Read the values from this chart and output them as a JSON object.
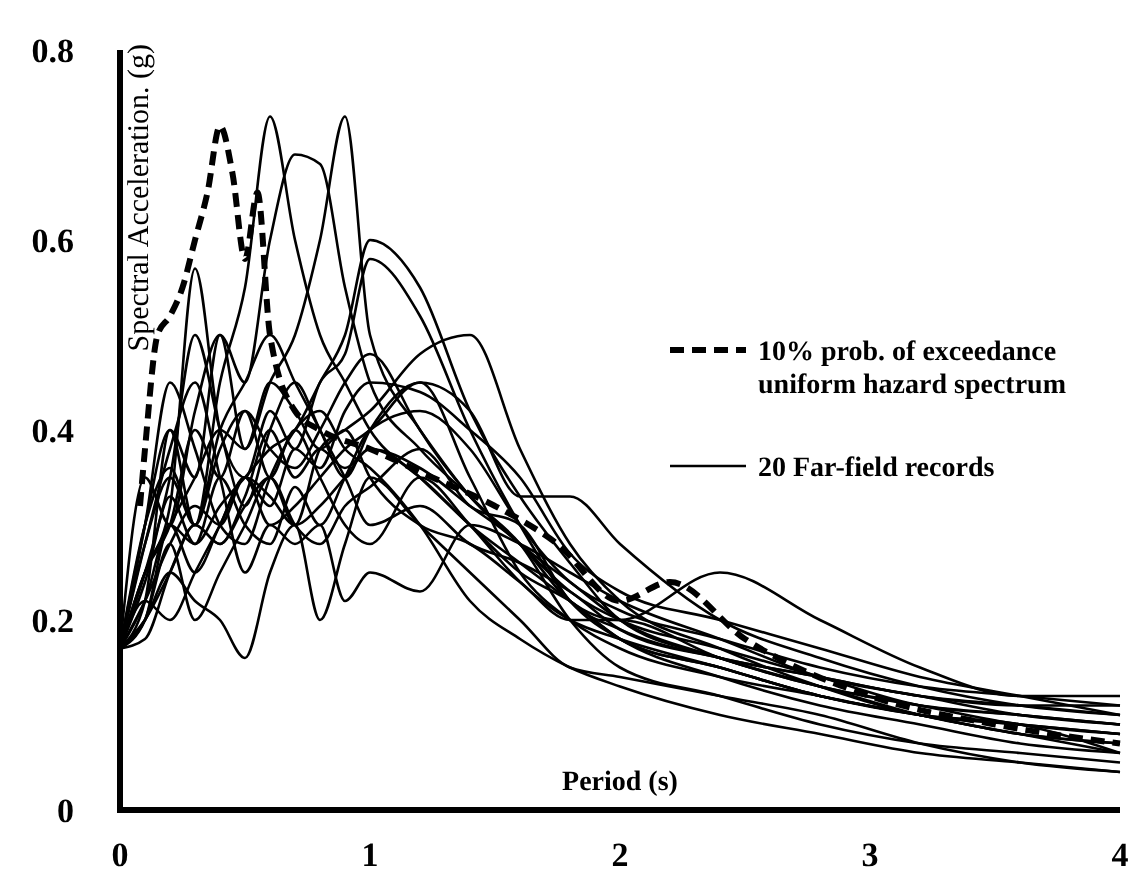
{
  "chart_data": {
    "type": "line",
    "xlabel": "Period (s)",
    "ylabel": "Spectral Acceleration. (g)",
    "xlim": [
      0,
      4
    ],
    "xticks": [
      0,
      1,
      2,
      3,
      4
    ],
    "ylim": [
      0,
      0.8
    ],
    "yticks": [
      0,
      0.2,
      0.4,
      0.6,
      0.8
    ],
    "grid": false,
    "legend": "right",
    "marker": "none",
    "x": [
      0,
      0.1,
      0.2,
      0.3,
      0.4,
      0.5,
      0.6,
      0.7,
      0.8,
      0.9,
      1.0,
      1.2,
      1.4,
      1.6,
      1.8,
      2.0,
      2.4,
      2.8,
      3.2,
      3.6,
      4.0
    ],
    "series": [
      {
        "name": "10% prob. of exceedance uniform hazard spectrum",
        "color": "#000000",
        "line_style": "dashed",
        "x": [
          0.08,
          0.1,
          0.15,
          0.2,
          0.25,
          0.3,
          0.35,
          0.4,
          0.45,
          0.5,
          0.55,
          0.6,
          0.7,
          0.8,
          1.0,
          1.25,
          1.5,
          1.75,
          2.0,
          2.2,
          2.5,
          3.0,
          3.5,
          4.0
        ],
        "values": [
          0.32,
          0.38,
          0.5,
          0.52,
          0.55,
          0.6,
          0.65,
          0.72,
          0.67,
          0.58,
          0.65,
          0.5,
          0.42,
          0.4,
          0.38,
          0.35,
          0.32,
          0.28,
          0.22,
          0.24,
          0.18,
          0.12,
          0.09,
          0.07
        ]
      },
      {
        "name": "20 Far-field records",
        "color": "#000000",
        "values": [
          0.17,
          0.25,
          0.3,
          0.35,
          0.4,
          0.38,
          0.45,
          0.5,
          0.6,
          0.73,
          0.5,
          0.4,
          0.33,
          0.28,
          0.24,
          0.2,
          0.16,
          0.13,
          0.11,
          0.09,
          0.08
        ]
      },
      {
        "color": "#000000",
        "values": [
          0.17,
          0.28,
          0.35,
          0.3,
          0.45,
          0.55,
          0.73,
          0.6,
          0.5,
          0.45,
          0.4,
          0.35,
          0.3,
          0.25,
          0.22,
          0.18,
          0.15,
          0.12,
          0.1,
          0.08,
          0.07
        ]
      },
      {
        "color": "#000000",
        "values": [
          0.17,
          0.3,
          0.4,
          0.35,
          0.5,
          0.45,
          0.6,
          0.69,
          0.68,
          0.55,
          0.45,
          0.38,
          0.33,
          0.28,
          0.23,
          0.2,
          0.17,
          0.14,
          0.11,
          0.1,
          0.09
        ]
      },
      {
        "color": "#000000",
        "values": [
          0.17,
          0.22,
          0.3,
          0.28,
          0.32,
          0.35,
          0.38,
          0.4,
          0.45,
          0.5,
          0.6,
          0.55,
          0.42,
          0.33,
          0.26,
          0.2,
          0.16,
          0.13,
          0.1,
          0.08,
          0.06
        ]
      },
      {
        "color": "#000000",
        "values": [
          0.17,
          0.25,
          0.32,
          0.57,
          0.4,
          0.35,
          0.42,
          0.38,
          0.45,
          0.48,
          0.58,
          0.52,
          0.4,
          0.3,
          0.22,
          0.18,
          0.15,
          0.12,
          0.1,
          0.08,
          0.07
        ]
      },
      {
        "color": "#000000",
        "values": [
          0.17,
          0.2,
          0.25,
          0.3,
          0.28,
          0.32,
          0.35,
          0.3,
          0.38,
          0.4,
          0.42,
          0.48,
          0.5,
          0.38,
          0.28,
          0.22,
          0.17,
          0.13,
          0.1,
          0.09,
          0.08
        ]
      },
      {
        "color": "#000000",
        "values": [
          0.17,
          0.2,
          0.3,
          0.25,
          0.3,
          0.35,
          0.3,
          0.32,
          0.35,
          0.38,
          0.4,
          0.45,
          0.42,
          0.33,
          0.33,
          0.28,
          0.2,
          0.16,
          0.13,
          0.11,
          0.1
        ]
      },
      {
        "color": "#000000",
        "values": [
          0.17,
          0.22,
          0.28,
          0.32,
          0.3,
          0.35,
          0.33,
          0.3,
          0.32,
          0.35,
          0.38,
          0.36,
          0.32,
          0.28,
          0.22,
          0.2,
          0.25,
          0.2,
          0.15,
          0.12,
          0.12
        ]
      },
      {
        "color": "#000000",
        "values": [
          0.17,
          0.2,
          0.25,
          0.22,
          0.2,
          0.16,
          0.25,
          0.3,
          0.2,
          0.28,
          0.35,
          0.3,
          0.25,
          0.2,
          0.15,
          0.14,
          0.12,
          0.1,
          0.07,
          0.05,
          0.04
        ]
      },
      {
        "color": "#000000",
        "values": [
          0.17,
          0.3,
          0.45,
          0.38,
          0.3,
          0.28,
          0.35,
          0.4,
          0.42,
          0.38,
          0.36,
          0.3,
          0.22,
          0.18,
          0.15,
          0.13,
          0.1,
          0.08,
          0.06,
          0.05,
          0.04
        ]
      },
      {
        "color": "#000000",
        "values": [
          0.17,
          0.25,
          0.35,
          0.5,
          0.4,
          0.32,
          0.4,
          0.45,
          0.4,
          0.35,
          0.4,
          0.45,
          0.35,
          0.25,
          0.2,
          0.17,
          0.14,
          0.12,
          0.1,
          0.09,
          0.08
        ]
      },
      {
        "color": "#000000",
        "values": [
          0.17,
          0.22,
          0.4,
          0.3,
          0.38,
          0.42,
          0.35,
          0.4,
          0.35,
          0.3,
          0.28,
          0.35,
          0.3,
          0.24,
          0.2,
          0.18,
          0.15,
          0.12,
          0.1,
          0.09,
          0.06
        ]
      },
      {
        "color": "#000000",
        "values": [
          0.17,
          0.28,
          0.38,
          0.45,
          0.35,
          0.25,
          0.3,
          0.28,
          0.3,
          0.22,
          0.25,
          0.23,
          0.3,
          0.28,
          0.25,
          0.22,
          0.18,
          0.14,
          0.12,
          0.1,
          0.09
        ]
      },
      {
        "color": "#000000",
        "values": [
          0.17,
          0.35,
          0.3,
          0.42,
          0.5,
          0.38,
          0.45,
          0.42,
          0.38,
          0.4,
          0.35,
          0.3,
          0.28,
          0.24,
          0.2,
          0.2,
          0.16,
          0.13,
          0.11,
          0.1,
          0.09
        ]
      },
      {
        "color": "#000000",
        "values": [
          0.17,
          0.22,
          0.2,
          0.25,
          0.3,
          0.35,
          0.32,
          0.38,
          0.36,
          0.42,
          0.45,
          0.44,
          0.4,
          0.35,
          0.27,
          0.23,
          0.2,
          0.17,
          0.14,
          0.12,
          0.1
        ]
      },
      {
        "color": "#000000",
        "values": [
          0.17,
          0.2,
          0.28,
          0.2,
          0.25,
          0.3,
          0.35,
          0.3,
          0.28,
          0.32,
          0.34,
          0.38,
          0.32,
          0.3,
          0.22,
          0.19,
          0.16,
          0.14,
          0.12,
          0.11,
          0.1
        ]
      },
      {
        "color": "#000000",
        "values": [
          0.17,
          0.25,
          0.3,
          0.4,
          0.35,
          0.42,
          0.38,
          0.36,
          0.4,
          0.45,
          0.48,
          0.4,
          0.33,
          0.28,
          0.2,
          0.15,
          0.12,
          0.09,
          0.07,
          0.06,
          0.05
        ]
      },
      {
        "color": "#000000",
        "values": [
          0.17,
          0.3,
          0.36,
          0.3,
          0.4,
          0.45,
          0.5,
          0.45,
          0.4,
          0.35,
          0.3,
          0.32,
          0.28,
          0.26,
          0.23,
          0.19,
          0.16,
          0.14,
          0.12,
          0.11,
          0.11
        ]
      },
      {
        "color": "#000000",
        "values": [
          0.17,
          0.18,
          0.25,
          0.3,
          0.28,
          0.33,
          0.4,
          0.35,
          0.38,
          0.36,
          0.38,
          0.35,
          0.3,
          0.26,
          0.22,
          0.18,
          0.14,
          0.11,
          0.09,
          0.07,
          0.06
        ]
      },
      {
        "color": "#000000",
        "values": [
          0.17,
          0.24,
          0.33,
          0.28,
          0.35,
          0.3,
          0.28,
          0.34,
          0.3,
          0.35,
          0.4,
          0.42,
          0.38,
          0.3,
          0.24,
          0.21,
          0.18,
          0.15,
          0.13,
          0.12,
          0.11
        ]
      }
    ]
  }
}
